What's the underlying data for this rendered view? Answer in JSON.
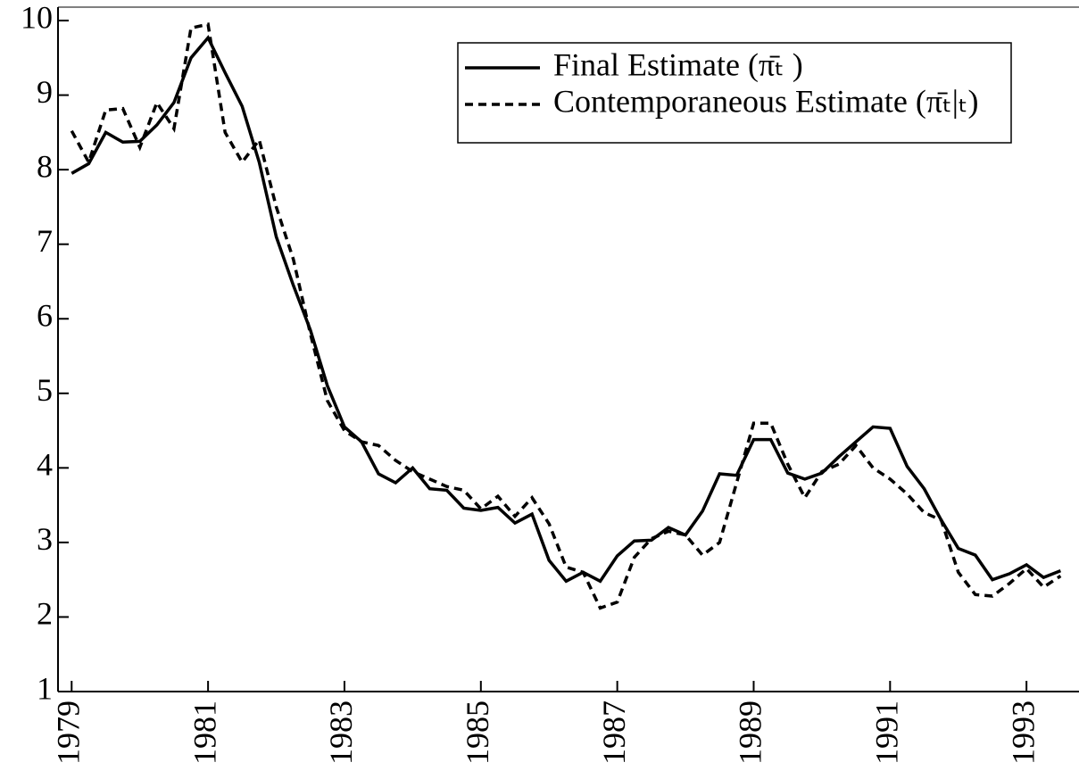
{
  "chart_data": {
    "type": "line",
    "x": [
      1979,
      1979.25,
      1979.5,
      1979.75,
      1980,
      1980.25,
      1980.5,
      1980.75,
      1981,
      1981.25,
      1981.5,
      1981.75,
      1982,
      1982.25,
      1982.5,
      1982.75,
      1983,
      1983.25,
      1983.5,
      1983.75,
      1984,
      1984.25,
      1984.5,
      1984.75,
      1985,
      1985.25,
      1985.5,
      1985.75,
      1986,
      1986.25,
      1986.5,
      1986.75,
      1987,
      1987.25,
      1987.5,
      1987.75,
      1988,
      1988.25,
      1988.5,
      1988.75,
      1989,
      1989.25,
      1989.5,
      1989.75,
      1990,
      1990.25,
      1990.5,
      1990.75,
      1991,
      1991.25,
      1991.5,
      1991.75,
      1992,
      1992.25,
      1992.5,
      1992.75,
      1993,
      1993.25,
      1993.5
    ],
    "series": [
      {
        "name": "Final Estimate (π̄ₜ )",
        "color": "#000000",
        "dash": "solid",
        "values": [
          7.95,
          8.08,
          8.5,
          8.37,
          8.38,
          8.6,
          8.9,
          9.5,
          9.77,
          9.3,
          8.85,
          8.1,
          7.1,
          6.45,
          5.85,
          5.1,
          4.55,
          4.35,
          3.92,
          3.8,
          4.0,
          3.72,
          3.7,
          3.46,
          3.43,
          3.47,
          3.26,
          3.38,
          2.76,
          2.48,
          2.6,
          2.48,
          2.82,
          3.02,
          3.03,
          3.2,
          3.1,
          3.42,
          3.92,
          3.9,
          4.38,
          4.38,
          3.93,
          3.85,
          3.93,
          4.15,
          4.35,
          4.55,
          4.53,
          4.02,
          3.72,
          3.3,
          2.92,
          2.83,
          2.5,
          2.58,
          2.7,
          2.53,
          2.62
        ]
      },
      {
        "name": "Contemporaneous Estimate (π̄ₜ|ₜ)",
        "color": "#000000",
        "dash": "dashed",
        "values": [
          8.52,
          8.1,
          8.8,
          8.82,
          8.3,
          8.9,
          8.55,
          9.9,
          9.95,
          8.5,
          8.1,
          8.4,
          7.5,
          6.8,
          5.8,
          4.9,
          4.5,
          4.35,
          4.3,
          4.1,
          3.95,
          3.85,
          3.75,
          3.7,
          3.45,
          3.62,
          3.35,
          3.6,
          3.25,
          2.67,
          2.6,
          2.12,
          2.2,
          2.8,
          3.05,
          3.15,
          3.1,
          2.83,
          3.0,
          3.8,
          4.6,
          4.6,
          4.05,
          3.6,
          3.95,
          4.05,
          4.3,
          4.0,
          3.85,
          3.65,
          3.4,
          3.3,
          2.6,
          2.3,
          2.28,
          2.45,
          2.65,
          2.4,
          2.55
        ]
      }
    ],
    "xlim": [
      1978.8,
      1993.77
    ],
    "xticks": [
      1979,
      1981,
      1983,
      1985,
      1987,
      1989,
      1991,
      1993
    ],
    "ylim": [
      1,
      10.18
    ],
    "yticks": [
      1,
      2,
      3,
      4,
      5,
      6,
      7,
      8,
      9,
      10
    ],
    "grid": false,
    "legend": "upper right"
  }
}
